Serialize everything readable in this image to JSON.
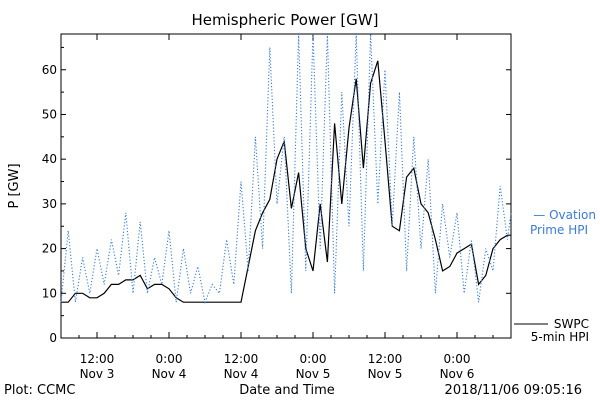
{
  "chart_data": {
    "type": "line",
    "title": "Hemispheric Power [GW]",
    "ylabel": "P [GW]",
    "xlabel": "Date and Time",
    "footer_left": "Plot: CCMC",
    "footer_right": "2018/11/06 09:05:16",
    "xlim": [
      -0.25,
      2.875
    ],
    "ylim": [
      0,
      68
    ],
    "yticks": [
      0,
      10,
      20,
      30,
      40,
      50,
      60
    ],
    "xticks": [
      {
        "x": 0.0,
        "time": "12:00",
        "date": "Nov 3"
      },
      {
        "x": 0.5,
        "time": "0:00",
        "date": "Nov 4"
      },
      {
        "x": 1.0,
        "time": "12:00",
        "date": "Nov 4"
      },
      {
        "x": 1.5,
        "time": "0:00",
        "date": "Nov 5"
      },
      {
        "x": 2.0,
        "time": "12:00",
        "date": "Nov 5"
      },
      {
        "x": 2.5,
        "time": "0:00",
        "date": "Nov 6"
      }
    ],
    "series": [
      {
        "name": "SWPC 5-min HPI",
        "legend_line1": "SWPC",
        "legend_line2": "5-min HPI",
        "color": "#000000",
        "style": "solid",
        "x": [
          -0.25,
          -0.2,
          -0.15,
          -0.1,
          -0.05,
          0.0,
          0.05,
          0.1,
          0.15,
          0.2,
          0.25,
          0.3,
          0.35,
          0.4,
          0.45,
          0.5,
          0.55,
          0.6,
          0.65,
          0.7,
          0.75,
          0.8,
          0.85,
          0.9,
          0.95,
          1.0,
          1.05,
          1.1,
          1.15,
          1.2,
          1.25,
          1.3,
          1.35,
          1.4,
          1.45,
          1.5,
          1.55,
          1.6,
          1.65,
          1.7,
          1.75,
          1.8,
          1.85,
          1.9,
          1.95,
          2.0,
          2.05,
          2.1,
          2.15,
          2.2,
          2.25,
          2.3,
          2.35,
          2.4,
          2.45,
          2.5,
          2.55,
          2.6,
          2.65,
          2.7,
          2.75,
          2.8,
          2.85,
          2.875
        ],
        "y": [
          8,
          8,
          10,
          10,
          9,
          9,
          10,
          12,
          12,
          13,
          13,
          14,
          11,
          12,
          12,
          11,
          9,
          8,
          8,
          8,
          8,
          8,
          8,
          8,
          8,
          8,
          16,
          24,
          28,
          31,
          40,
          44,
          29,
          37,
          20,
          15,
          30,
          17,
          48,
          30,
          47,
          58,
          38,
          57,
          62,
          44,
          25,
          24,
          36,
          38,
          30,
          28,
          22,
          15,
          16,
          19,
          20,
          21,
          12,
          14,
          20,
          22,
          23,
          23
        ]
      },
      {
        "name": "Ovation Prime HPI",
        "legend_line1": "— Ovation",
        "legend_line2": "Prime HPI",
        "color": "#3a7bd5",
        "style": "dotted",
        "x": [
          -0.25,
          -0.2,
          -0.15,
          -0.1,
          -0.05,
          0.0,
          0.05,
          0.1,
          0.15,
          0.2,
          0.25,
          0.3,
          0.35,
          0.4,
          0.45,
          0.5,
          0.55,
          0.6,
          0.65,
          0.7,
          0.75,
          0.8,
          0.85,
          0.9,
          0.95,
          1.0,
          1.05,
          1.1,
          1.15,
          1.2,
          1.25,
          1.3,
          1.35,
          1.4,
          1.45,
          1.5,
          1.55,
          1.6,
          1.65,
          1.7,
          1.75,
          1.8,
          1.85,
          1.9,
          1.95,
          2.0,
          2.05,
          2.1,
          2.15,
          2.2,
          2.25,
          2.3,
          2.35,
          2.4,
          2.45,
          2.5,
          2.55,
          2.6,
          2.65,
          2.7,
          2.75,
          2.8,
          2.85,
          2.875
        ],
        "y": [
          8,
          24,
          8,
          18,
          10,
          20,
          12,
          22,
          14,
          28,
          10,
          26,
          10,
          18,
          12,
          24,
          8,
          20,
          10,
          16,
          8,
          12,
          10,
          22,
          12,
          35,
          15,
          45,
          20,
          65,
          30,
          45,
          10,
          68,
          15,
          68,
          20,
          68,
          10,
          55,
          25,
          68,
          15,
          68,
          30,
          60,
          25,
          55,
          15,
          45,
          20,
          40,
          10,
          30,
          18,
          28,
          10,
          22,
          8,
          20,
          15,
          34,
          22,
          28
        ]
      }
    ]
  }
}
